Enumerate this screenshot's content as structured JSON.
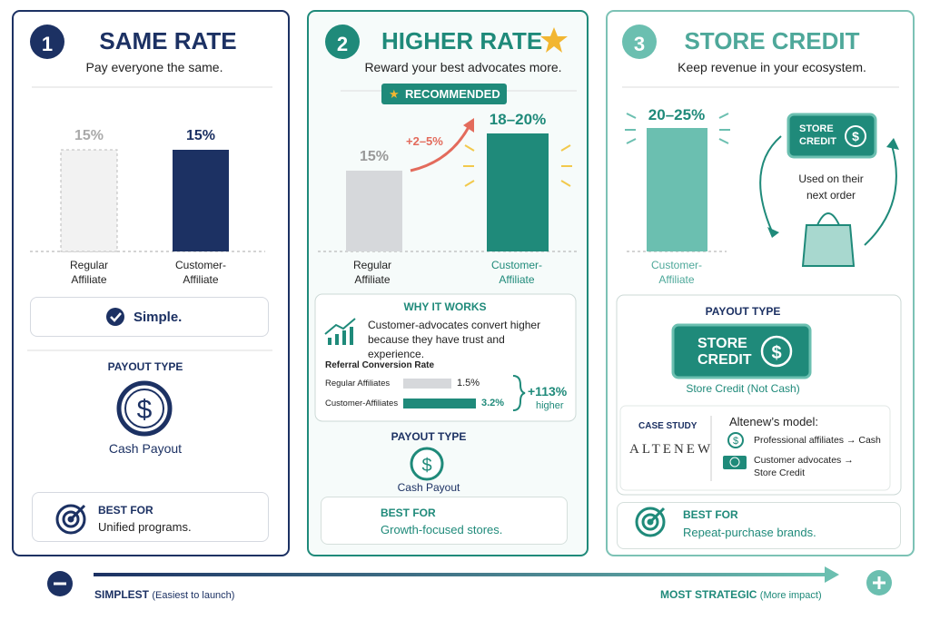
{
  "panels": [
    {
      "number": "1",
      "title": "SAME RATE",
      "subtitle": "Pay everyone the same.",
      "bars": [
        {
          "value_text": "15%",
          "label": "Regular Affiliate"
        },
        {
          "value_text": "15%",
          "label": "Customer-Affiliate"
        }
      ],
      "highlight": "Simple.",
      "payout_heading": "PAYOUT TYPE",
      "payout": "Cash Payout",
      "best_for_heading": "BEST FOR",
      "best_for": "Unified programs."
    },
    {
      "number": "2",
      "title": "HIGHER RATE",
      "subtitle": "Reward your best advocates more.",
      "badge": "RECOMMENDED",
      "bars": [
        {
          "value_text": "15%",
          "label": "Regular Affiliate"
        },
        {
          "value_text": "18–20%",
          "label": "Customer-Affiliate"
        }
      ],
      "increase": "+2–5%",
      "why": {
        "heading": "WHY IT WORKS",
        "text": "Customer-advocates convert higher because they have trust and experience.",
        "chart_title": "Referral Conversion Rate",
        "rows": [
          {
            "label": "Regular Affiliates",
            "value_text": "1.5%"
          },
          {
            "label": "Customer-Affiliates",
            "value_text": "3.2%"
          }
        ],
        "lift": "+113%",
        "lift_note": "higher"
      },
      "payout_heading": "PAYOUT TYPE",
      "payout": "Cash Payout",
      "best_for_heading": "BEST FOR",
      "best_for": "Growth-focused stores."
    },
    {
      "number": "3",
      "title": "STORE CREDIT",
      "subtitle": "Keep revenue in your ecosystem.",
      "bars": [
        {
          "value_text": "20–25%",
          "label": "Customer-Affiliate"
        }
      ],
      "ticket": "STORE CREDIT",
      "cycle_note": "Used on their next order",
      "payout_heading": "PAYOUT TYPE",
      "payout_ticket": "STORE CREDIT",
      "payout": "Store Credit (Not Cash)",
      "case_study": {
        "heading": "CASE STUDY",
        "logo": "ALTENEW",
        "model": "Altenew’s model:",
        "items": [
          "Professional affiliates → Cash",
          "Customer advocates → Store Credit"
        ]
      },
      "best_for_heading": "BEST FOR",
      "best_for": "Repeat-purchase brands."
    }
  ],
  "scale": {
    "left": "SIMPLEST",
    "left_note": "(Easiest to launch)",
    "right": "MOST STRATEGIC",
    "right_note": "(More impact)"
  }
}
